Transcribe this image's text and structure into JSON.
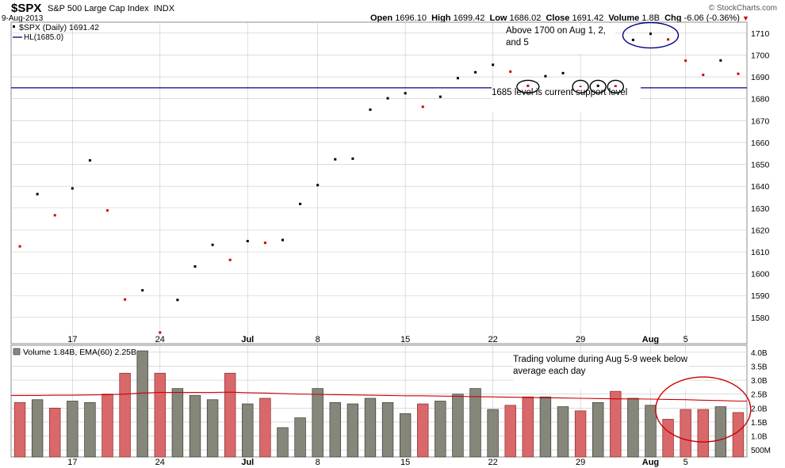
{
  "header": {
    "symbol": "$SPX",
    "name": "S&P 500 Large Cap Index",
    "exchange": "INDX",
    "date": "9-Aug-2013",
    "copyright": "© StockCharts.com",
    "open_label": "Open",
    "open": "1696.10",
    "high_label": "High",
    "high": "1699.42",
    "low_label": "Low",
    "low": "1686.02",
    "close_label": "Close",
    "close": "1691.42",
    "volume_label": "Volume",
    "volume": "1.8B",
    "chg_label": "Chg",
    "chg": "-6.06 (-0.36%)"
  },
  "legend": {
    "price": "$SPX (Daily) 1691.42",
    "hline": "HL(1685.0)",
    "volume": "Volume 1.84B, EMA(60) 2.25B"
  },
  "annotations": {
    "above1700": "Above 1700 on Aug 1, 2, and 5",
    "support": "1685 level is current support level",
    "volume_note": "Trading volume during Aug 5-9 week below average each day"
  },
  "colors": {
    "up": "#000000",
    "down": "#cc0000",
    "up_bar": "#86867a",
    "down_bar": "#d9686a",
    "hline": "#000080",
    "ema": "#cc0000",
    "annotation_ellipse_blue": "#000080",
    "annotation_ellipse_black": "#000000",
    "annotation_ellipse_red": "#cc0000",
    "grid": "#c8c8c8"
  },
  "chart_data": [
    {
      "type": "scatter",
      "title": "$SPX (Daily) 1691.42",
      "x": [
        "2013-06-12",
        "2013-06-13",
        "2013-06-14",
        "2013-06-17",
        "2013-06-18",
        "2013-06-19",
        "2013-06-20",
        "2013-06-21",
        "2013-06-24",
        "2013-06-25",
        "2013-06-26",
        "2013-06-27",
        "2013-06-28",
        "2013-07-01",
        "2013-07-02",
        "2013-07-03",
        "2013-07-05",
        "2013-07-08",
        "2013-07-09",
        "2013-07-10",
        "2013-07-11",
        "2013-07-12",
        "2013-07-15",
        "2013-07-16",
        "2013-07-17",
        "2013-07-18",
        "2013-07-19",
        "2013-07-22",
        "2013-07-23",
        "2013-07-24",
        "2013-07-25",
        "2013-07-26",
        "2013-07-29",
        "2013-07-30",
        "2013-07-31",
        "2013-08-01",
        "2013-08-02",
        "2013-08-05",
        "2013-08-06",
        "2013-08-07",
        "2013-08-08",
        "2013-08-09"
      ],
      "series": [
        {
          "name": "$SPX (Daily) 1691.42",
          "values": [
            1612.5,
            1636.4,
            1626.7,
            1639.0,
            1651.8,
            1628.9,
            1588.2,
            1592.4,
            1573.1,
            1588.0,
            1603.3,
            1613.2,
            1606.3,
            1614.9,
            1614.1,
            1615.4,
            1631.9,
            1640.5,
            1652.3,
            1652.6,
            1675.0,
            1680.2,
            1682.5,
            1676.3,
            1680.9,
            1689.4,
            1692.1,
            1695.5,
            1692.4,
            1685.9,
            1690.3,
            1691.7,
            1685.3,
            1685.9,
            1685.7,
            1706.9,
            1709.7,
            1707.1,
            1697.4,
            1690.9,
            1697.5,
            1691.4
          ],
          "direction": [
            "down",
            "up",
            "down",
            "up",
            "up",
            "down",
            "down",
            "up",
            "down",
            "up",
            "up",
            "up",
            "down",
            "up",
            "down",
            "up",
            "up",
            "up",
            "up",
            "up",
            "up",
            "up",
            "up",
            "down",
            "up",
            "up",
            "up",
            "up",
            "down",
            "down",
            "up",
            "up",
            "down",
            "up",
            "down",
            "up",
            "up",
            "down",
            "down",
            "down",
            "up",
            "down"
          ]
        }
      ],
      "hline": 1685.0,
      "ylim": [
        1568,
        1715
      ],
      "yticks": [
        1580,
        1590,
        1600,
        1610,
        1620,
        1630,
        1640,
        1650,
        1660,
        1670,
        1680,
        1690,
        1700,
        1710
      ],
      "xtick_labels": [
        "17",
        "24",
        "Jul",
        "8",
        "15",
        "22",
        "29",
        "Aug",
        "5"
      ],
      "grid": true,
      "legend": "top-left"
    },
    {
      "type": "bar",
      "title": "Volume 1.84B, EMA(60) 2.25B",
      "series": [
        {
          "name": "Volume",
          "values": [
            2.2,
            2.3,
            2.0,
            2.25,
            2.2,
            2.5,
            3.25,
            4.05,
            3.25,
            2.7,
            2.45,
            2.3,
            3.25,
            2.15,
            2.35,
            1.3,
            1.65,
            2.7,
            2.2,
            2.15,
            2.35,
            2.2,
            1.8,
            2.15,
            2.25,
            2.5,
            2.7,
            1.95,
            2.1,
            2.4,
            2.4,
            2.05,
            1.9,
            2.2,
            2.6,
            2.35,
            2.1,
            1.6,
            1.95,
            1.95,
            2.05,
            1.84
          ]
        },
        {
          "name": "EMA(60)",
          "values": [
            2.45,
            2.45,
            2.46,
            2.46,
            2.47,
            2.48,
            2.5,
            2.54,
            2.56,
            2.56,
            2.56,
            2.56,
            2.57,
            2.55,
            2.54,
            2.52,
            2.5,
            2.49,
            2.48,
            2.47,
            2.46,
            2.45,
            2.44,
            2.44,
            2.43,
            2.42,
            2.41,
            2.4,
            2.39,
            2.38,
            2.37,
            2.36,
            2.35,
            2.34,
            2.33,
            2.33,
            2.32,
            2.31,
            2.3,
            2.28,
            2.27,
            2.25
          ]
        }
      ],
      "unit": "B",
      "ylim": [
        0.25,
        4.25
      ],
      "yticks": [
        "500M",
        "1.0B",
        "1.5B",
        "2.0B",
        "2.5B",
        "3.0B",
        "3.5B",
        "4.0B"
      ],
      "xtick_labels": [
        "17",
        "24",
        "Jul",
        "8",
        "15",
        "22",
        "29",
        "Aug",
        "5"
      ]
    }
  ]
}
